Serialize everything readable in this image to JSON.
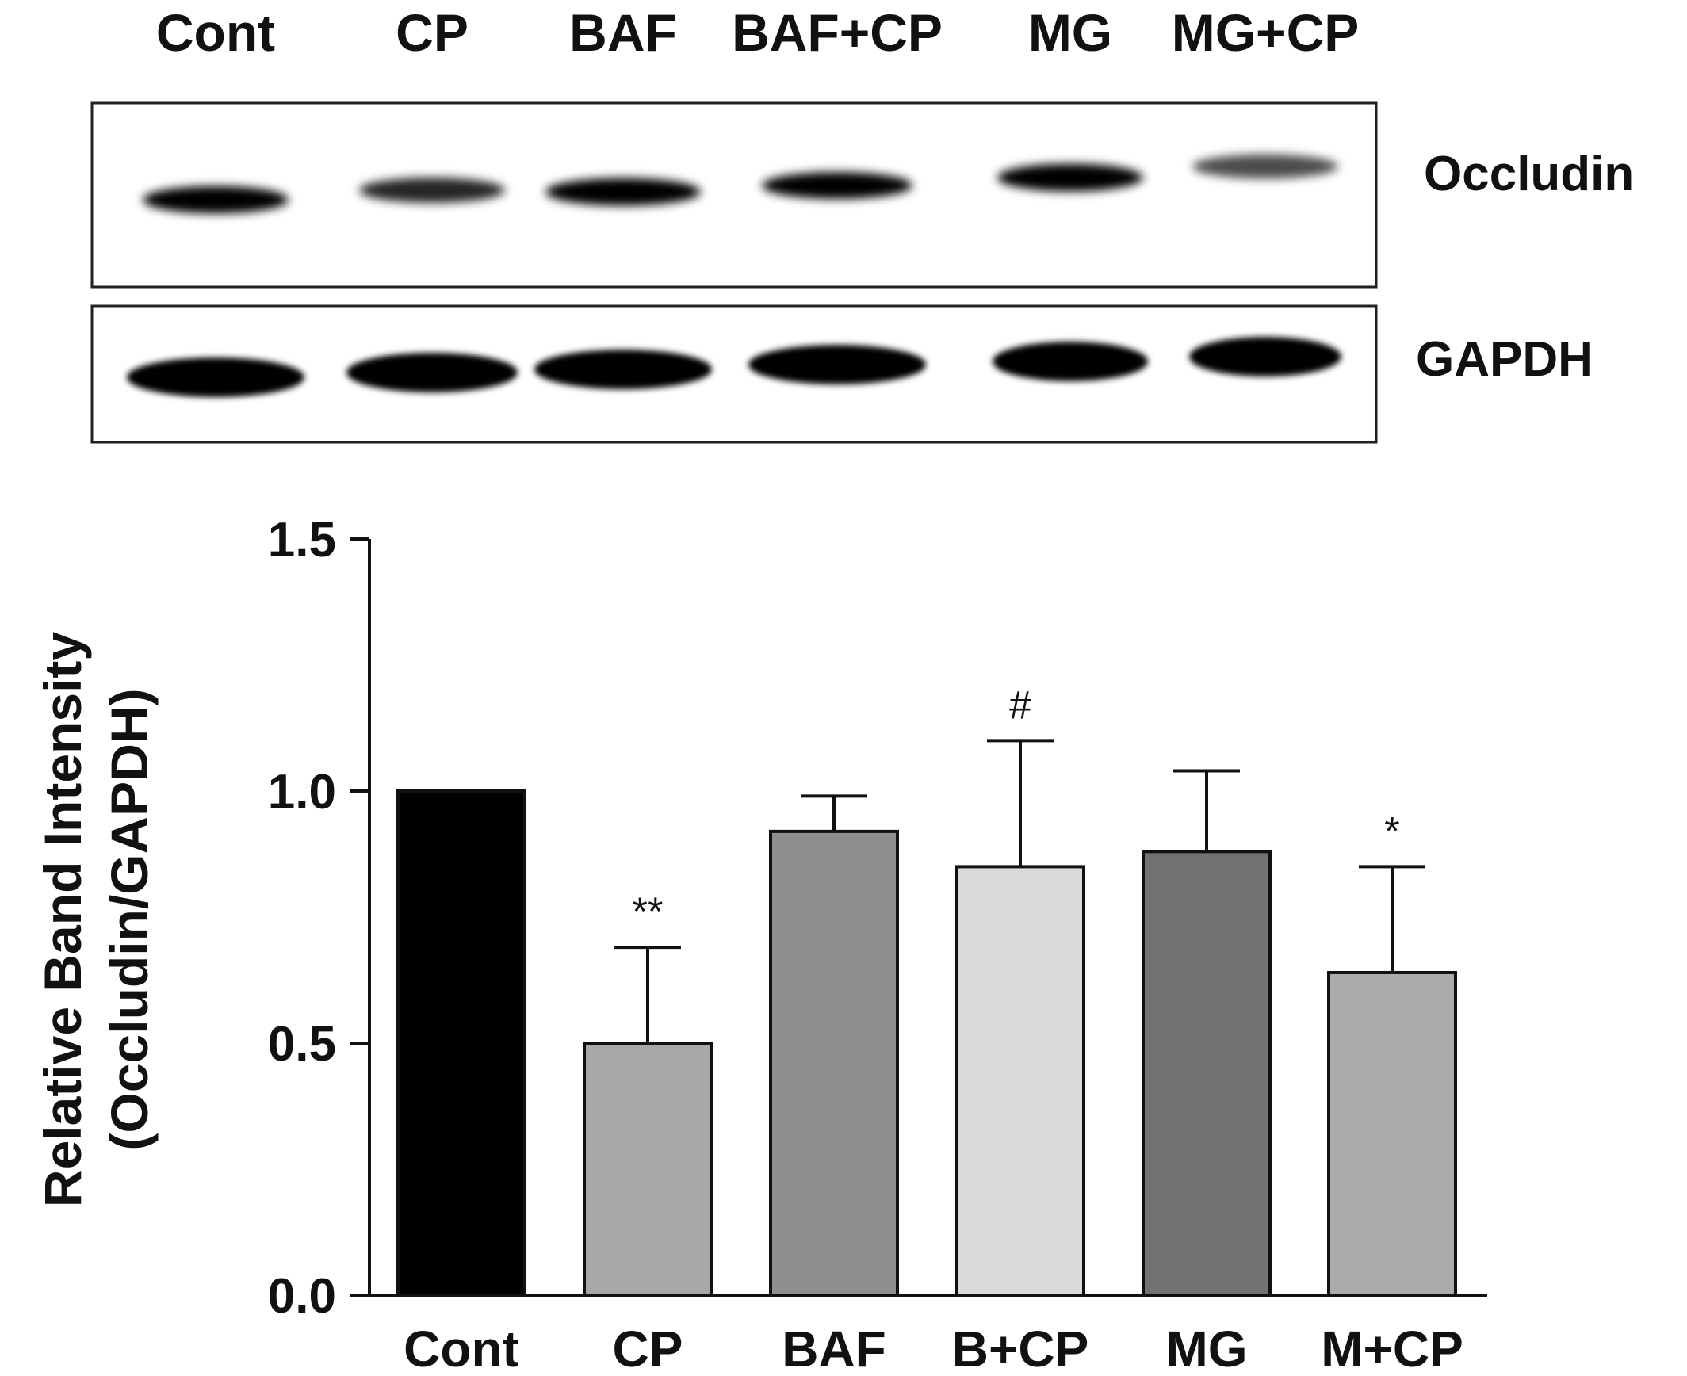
{
  "blot": {
    "lanes": [
      "Cont",
      "CP",
      "BAF",
      "BAF+CP",
      "MG",
      "MG+CP"
    ],
    "panels": [
      {
        "name": "Occludin",
        "band_intensity": [
          0.85,
          0.6,
          0.9,
          0.78,
          0.88,
          0.45
        ]
      },
      {
        "name": "GAPDH",
        "band_intensity": [
          1,
          1,
          1,
          1,
          1,
          1
        ]
      }
    ]
  },
  "chart_data": {
    "type": "bar",
    "categories": [
      "Cont",
      "CP",
      "BAF",
      "B+CP",
      "MG",
      "M+CP"
    ],
    "values": [
      1.0,
      0.5,
      0.92,
      0.85,
      0.88,
      0.64
    ],
    "errors": [
      0,
      0.19,
      0.07,
      0.25,
      0.16,
      0.21
    ],
    "annotations": [
      "",
      "**",
      "",
      "#",
      "",
      "*"
    ],
    "bar_colors": [
      "#000000",
      "#a8a8a8",
      "#8f8f8f",
      "#dadada",
      "#727272",
      "#ababab"
    ],
    "ylabel_line1": "Relative Band Intensity",
    "ylabel_line2": "(Occludin/GAPDH)",
    "ylim": [
      0,
      1.5
    ],
    "yticks": [
      "0.0",
      "0.5",
      "1.0",
      "1.5"
    ],
    "ytick_values": [
      0,
      0.5,
      1.0,
      1.5
    ],
    "grid": false
  }
}
